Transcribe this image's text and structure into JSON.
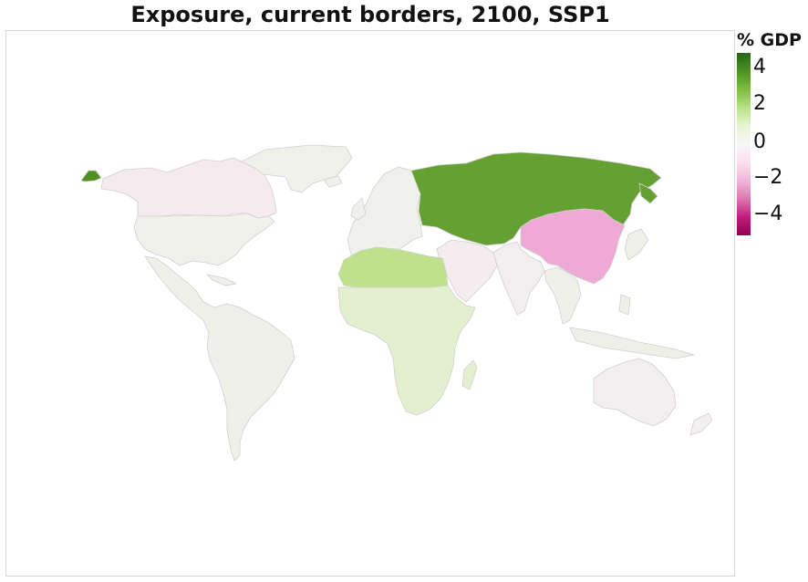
{
  "title": "Exposure, current borders, 2100, SSP1",
  "legend": {
    "title": "% GDP",
    "ticks": [
      "4",
      "2",
      "0",
      "−2",
      "−4"
    ],
    "range": [
      -5,
      5
    ],
    "colors": [
      "#276419",
      "#4d9221",
      "#7fbc41",
      "#b8e186",
      "#e6f5d0",
      "#f7f7f7",
      "#fde0ef",
      "#f1b6da",
      "#de77ae",
      "#c51b7d",
      "#8e0152"
    ]
  },
  "regions": [
    {
      "name": "Russia & Central Asia",
      "value": 4.0,
      "color": "#65a033"
    },
    {
      "name": "China",
      "value": -2.0,
      "color": "#eeaad4"
    },
    {
      "name": "North Africa",
      "value": 2.0,
      "color": "#c0e18c"
    },
    {
      "name": "Sub-Saharan Africa",
      "value": 1.0,
      "color": "#e3f0cf"
    },
    {
      "name": "Canada",
      "value": -0.3,
      "color": "#f5eaee"
    },
    {
      "name": "United States",
      "value": 0.1,
      "color": "#f0f1ea"
    },
    {
      "name": "Latin America",
      "value": 0.1,
      "color": "#eff1e8"
    },
    {
      "name": "Europe",
      "value": 0.1,
      "color": "#f0f1ec"
    },
    {
      "name": "Middle East",
      "value": -0.3,
      "color": "#f4ecef"
    },
    {
      "name": "South Asia",
      "value": -0.1,
      "color": "#f3eff0"
    },
    {
      "name": "Southeast Asia",
      "value": 0.1,
      "color": "#eff1e9"
    },
    {
      "name": "Australia",
      "value": -0.1,
      "color": "#f3eff0"
    },
    {
      "name": "Greenland",
      "value": 0.1,
      "color": "#f0f1eb"
    },
    {
      "name": "Alaska",
      "value": 4.0,
      "color": "#4f9022"
    }
  ]
}
